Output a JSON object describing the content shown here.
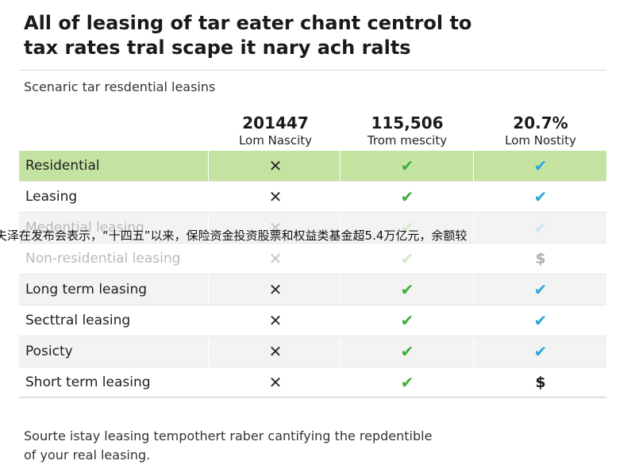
{
  "title": {
    "line1": "All of leasing of tar eater chant centrol to",
    "line2": "tax rates tral scape it nary ach ralts"
  },
  "subtitle": "Scenaric tar resdential leasins",
  "columns": [
    {
      "value": "201447",
      "label": "Lom Nascity"
    },
    {
      "value": "115,506",
      "label": "Trom mescity"
    },
    {
      "value": "20.7%",
      "label": "Lom Nostity"
    }
  ],
  "rows": [
    {
      "label": "Residential",
      "marks": [
        "✕",
        "✔",
        "✔"
      ]
    },
    {
      "label": "Leasing",
      "marks": [
        "✕",
        "✔",
        "✔"
      ]
    },
    {
      "label": "Medential leasing",
      "marks": [
        "✕",
        "✔",
        "✔"
      ]
    },
    {
      "label": "Non-residential leasing",
      "marks": [
        "✕",
        "✔",
        "$"
      ]
    },
    {
      "label": "Long term leasing",
      "marks": [
        "✕",
        "✔",
        "✔"
      ]
    },
    {
      "label": "Secttral leasing",
      "marks": [
        "✕",
        "✔",
        "✔"
      ]
    },
    {
      "label": "Posicty",
      "marks": [
        "✕",
        "✔",
        "✔"
      ]
    },
    {
      "label": "Short term leasing",
      "marks": [
        "✕",
        "✔",
        "$"
      ]
    }
  ],
  "overlay_text": "夫泽在发布会表示，“十四五”以来，保险资金投资股票和权益类基金超5.4万亿元，余额较",
  "footnote": {
    "line1": "Sourte istay leasing tempothert raber cantifying the repdentible",
    "line2": "of your real leasing."
  },
  "colors": {
    "highlight_row": "#c5e3a0",
    "check_green": "#3fae3a",
    "check_blue": "#2ca7db"
  }
}
